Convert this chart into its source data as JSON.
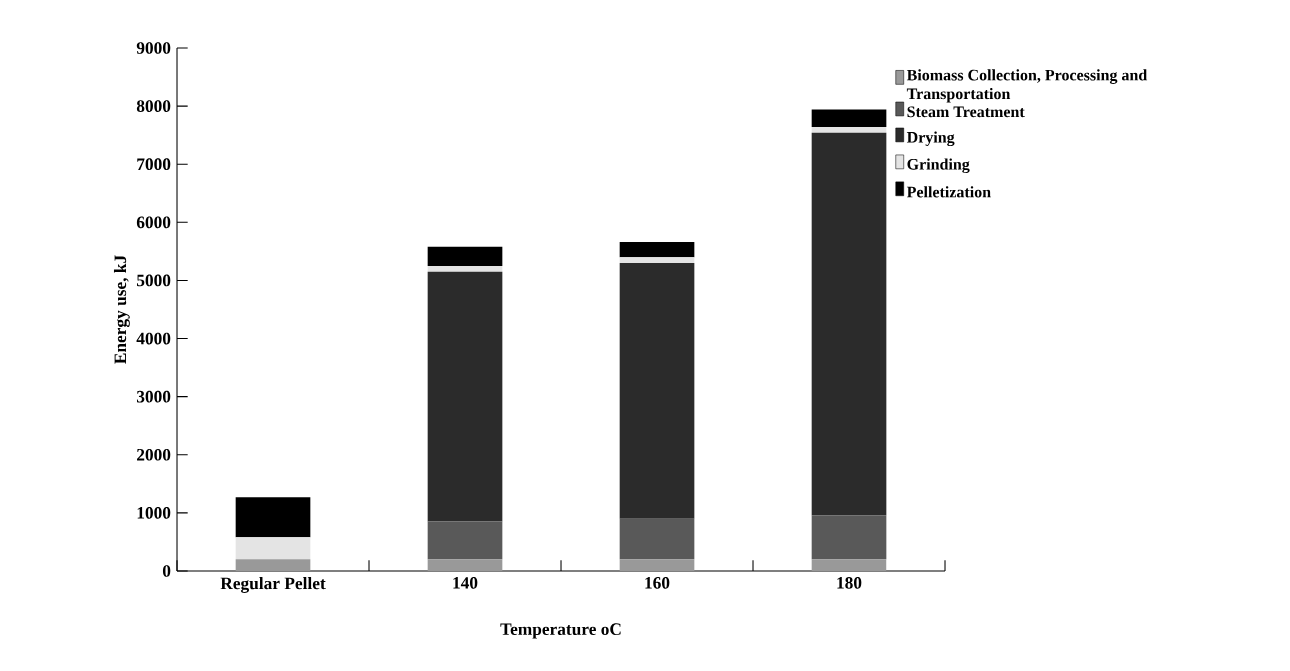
{
  "chart_data": {
    "type": "bar",
    "stacked": true,
    "xlabel": "Temperature oC",
    "ylabel": "Energy use, kJ",
    "categories": [
      "Regular Pellet",
      "140",
      "160",
      "180"
    ],
    "series": [
      {
        "name": "Biomass Collection, Processing and Transportation",
        "color": "#999999",
        "values": [
          200,
          200,
          200,
          200
        ]
      },
      {
        "name": "Steam Treatment",
        "color": "#595959",
        "values": [
          0,
          650,
          700,
          760
        ]
      },
      {
        "name": "Drying",
        "color": "#2b2b2b",
        "values": [
          0,
          4300,
          4400,
          6580
        ]
      },
      {
        "name": "Grinding",
        "color": "#e4e4e4",
        "values": [
          380,
          100,
          100,
          100
        ]
      },
      {
        "name": "Pelletization",
        "color": "#000000",
        "values": [
          690,
          330,
          260,
          300
        ]
      }
    ],
    "ylim": [
      0,
      9000
    ],
    "yticks": [
      0,
      1000,
      2000,
      3000,
      4000,
      5000,
      6000,
      7000,
      8000,
      9000
    ],
    "grid": false,
    "legend": "right"
  }
}
